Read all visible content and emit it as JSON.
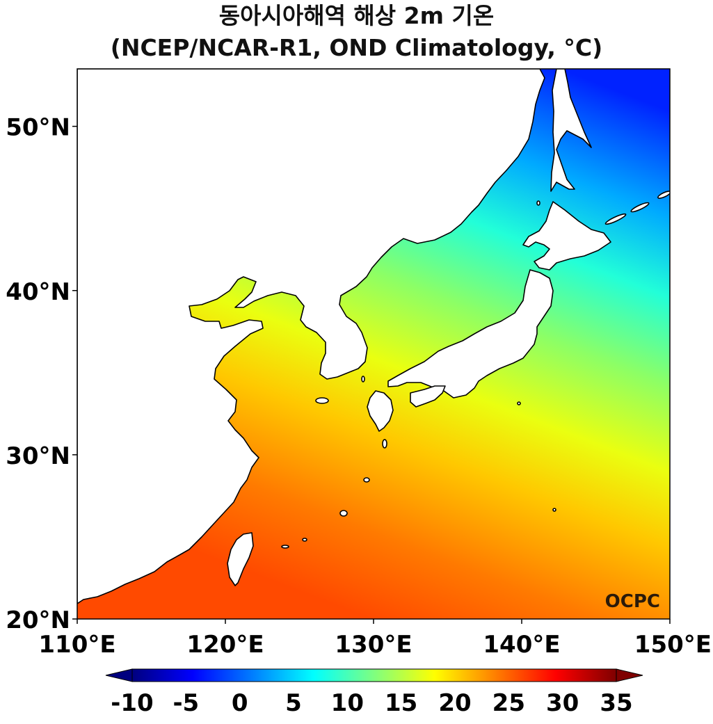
{
  "title": {
    "line1": "동아시아해역 해상 2m 기온",
    "line2": "(NCEP/NCAR-R1, OND Climatology, °C)"
  },
  "map": {
    "lon_range": [
      110,
      150
    ],
    "lat_range": [
      20,
      53.5
    ],
    "lon_ticks": [
      {
        "value": 110,
        "label": "110°E"
      },
      {
        "value": 120,
        "label": "120°E"
      },
      {
        "value": 130,
        "label": "130°E"
      },
      {
        "value": 140,
        "label": "140°E"
      },
      {
        "value": 150,
        "label": "150°E"
      }
    ],
    "lat_ticks": [
      {
        "value": 20,
        "label": "20°N"
      },
      {
        "value": 30,
        "label": "30°N"
      },
      {
        "value": 40,
        "label": "40°N"
      },
      {
        "value": 50,
        "label": "50°N"
      }
    ],
    "field": "2 m air temperature over sea, °C",
    "logo": "OCPC"
  },
  "colorbar": {
    "min": -10,
    "max": 35,
    "extend": "both",
    "ticks": [
      {
        "value": -10,
        "label": "-10"
      },
      {
        "value": -5,
        "label": "-5"
      },
      {
        "value": 0,
        "label": "0"
      },
      {
        "value": 5,
        "label": "5"
      },
      {
        "value": 10,
        "label": "10"
      },
      {
        "value": 15,
        "label": "15"
      },
      {
        "value": 20,
        "label": "20"
      },
      {
        "value": 25,
        "label": "25"
      },
      {
        "value": 30,
        "label": "30"
      },
      {
        "value": 35,
        "label": "35"
      }
    ],
    "colormap": [
      "#00007f",
      "#0000ff",
      "#007fff",
      "#00ffff",
      "#7fff7f",
      "#ffff00",
      "#ff7f00",
      "#ff0000",
      "#7f0000"
    ]
  }
}
